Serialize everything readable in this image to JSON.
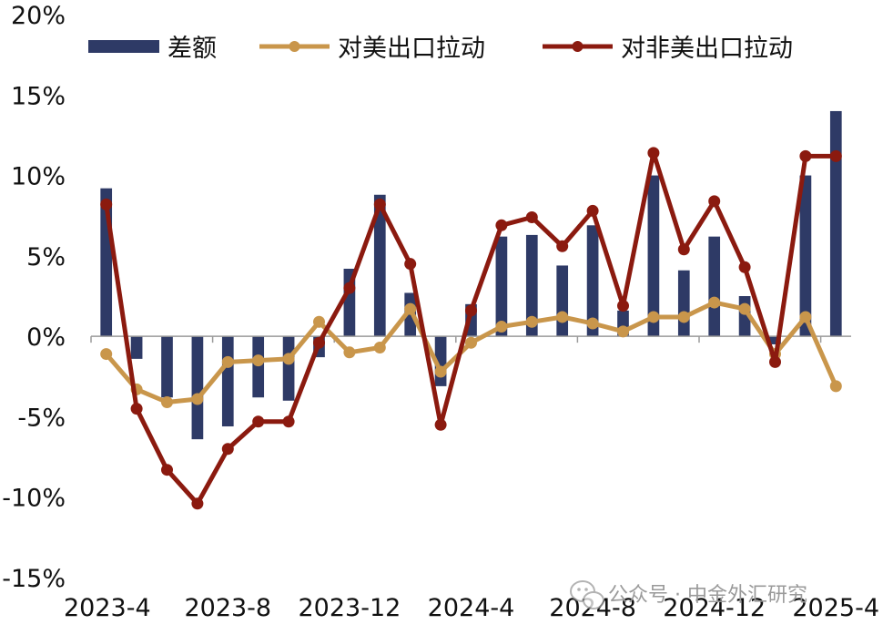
{
  "chart_data": {
    "type": "bar+line",
    "x": [
      "2023-4",
      "2023-5",
      "2023-6",
      "2023-7",
      "2023-8",
      "2023-9",
      "2023-10",
      "2023-11",
      "2023-12",
      "2024-1",
      "2024-2",
      "2024-3",
      "2024-4",
      "2024-5",
      "2024-6",
      "2024-7",
      "2024-8",
      "2024-9",
      "2024-10",
      "2024-11",
      "2024-12",
      "2025-1",
      "2025-2",
      "2025-3",
      "2025-4"
    ],
    "x_tick_labels": [
      "2023-4",
      "2023-8",
      "2023-12",
      "2024-4",
      "2024-8",
      "2024-12",
      "2025-4"
    ],
    "y_tick_labels": [
      "20%",
      "15%",
      "10%",
      "5%",
      "0%",
      "-5%",
      "-10%",
      "-15%"
    ],
    "ylim": [
      -15,
      20
    ],
    "grid": false,
    "legend_position": "top",
    "series": [
      {
        "name": "差额",
        "kind": "bar",
        "color": "#2e3a66",
        "values": [
          9.2,
          -1.4,
          -3.8,
          -6.4,
          -5.6,
          -3.8,
          -4.0,
          -1.3,
          4.2,
          8.8,
          2.7,
          -3.1,
          2.0,
          6.2,
          6.3,
          4.4,
          6.9,
          1.6,
          10.0,
          4.1,
          6.2,
          2.5,
          -0.5,
          10.0,
          14.0
        ]
      },
      {
        "name": "对美出口拉动",
        "kind": "line",
        "color": "#c9964b",
        "values": [
          -1.1,
          -3.3,
          -4.1,
          -3.9,
          -1.6,
          -1.5,
          -1.4,
          0.9,
          -1.0,
          -0.7,
          1.7,
          -2.2,
          -0.4,
          0.6,
          0.9,
          1.2,
          0.8,
          0.3,
          1.2,
          1.2,
          2.1,
          1.7,
          -1.1,
          1.2,
          -3.1
        ]
      },
      {
        "name": "对非美出口拉动",
        "kind": "line",
        "color": "#8b1a0f",
        "values": [
          8.2,
          -4.5,
          -8.3,
          -10.4,
          -7.0,
          -5.3,
          -5.3,
          -0.4,
          3.0,
          8.2,
          4.5,
          -5.5,
          1.6,
          6.9,
          7.4,
          5.6,
          7.8,
          1.9,
          11.4,
          5.4,
          8.4,
          4.3,
          -1.6,
          11.2,
          11.2
        ]
      }
    ]
  },
  "watermark": {
    "text": "公众号 · 中金外汇研究",
    "icon": "wechat-icon"
  }
}
